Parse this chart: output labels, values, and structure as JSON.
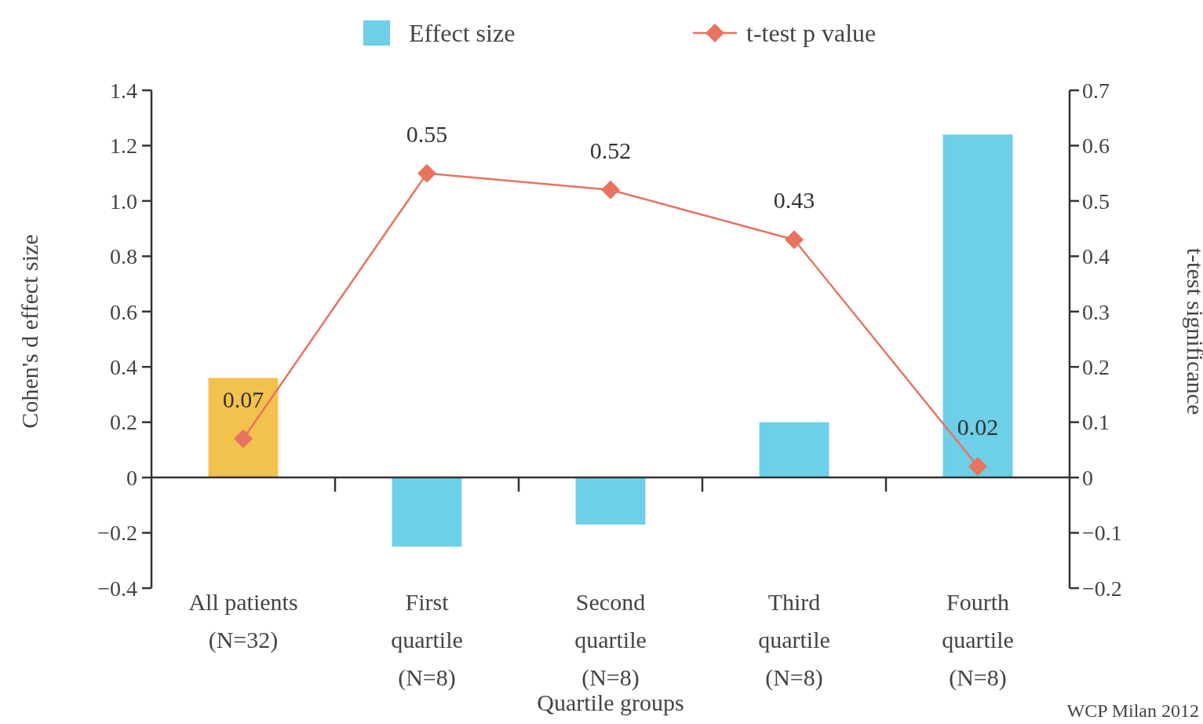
{
  "chart_data": {
    "type": "bar",
    "xlabel": "Quartile groups",
    "ylabel": "Cohen's d effect size",
    "y2label": "t-test significance",
    "categories": [
      "All patients\n(N=32)",
      "First\nquartile\n(N=8)",
      "Second\nquartile\n(N=8)",
      "Third\nquartile\n(N=8)",
      "Fourth\nquartile\n(N=8)"
    ],
    "series": [
      {
        "name": "Effect size",
        "color": "#6dcfe8",
        "colors": [
          "#f2c14e",
          "#6dcfe8",
          "#6dcfe8",
          "#6dcfe8",
          "#6dcfe8"
        ],
        "values": [
          0.36,
          -0.25,
          -0.17,
          0.2,
          1.24
        ]
      },
      {
        "name": "t-test p value",
        "type": "line",
        "axis": "y2",
        "color": "#e8735f",
        "marker": "diamond",
        "values": [
          0.07,
          0.55,
          0.52,
          0.43,
          0.02
        ],
        "value_labels": [
          "0.07",
          "0.55",
          "0.52",
          "0.43",
          "0.02"
        ]
      }
    ],
    "ylim": [
      -0.4,
      1.4
    ],
    "yticks": [
      {
        "value": -0.4,
        "label": "−0.4"
      },
      {
        "value": -0.2,
        "label": "−0.2"
      },
      0,
      0.2,
      0.4,
      0.6,
      0.8,
      {
        "value": 1,
        "label": "1.0"
      },
      1.2,
      1.4
    ],
    "y2lim": [
      -0.2,
      0.7
    ],
    "y2ticks": [
      {
        "value": -0.2,
        "label": "−0.2"
      },
      {
        "value": -0.1,
        "label": "−0.1"
      },
      0,
      0.1,
      0.2,
      0.3,
      0.4,
      0.5,
      0.6,
      0.7
    ],
    "legend": "top",
    "annotations": [
      "WCP Milan 2012"
    ]
  }
}
